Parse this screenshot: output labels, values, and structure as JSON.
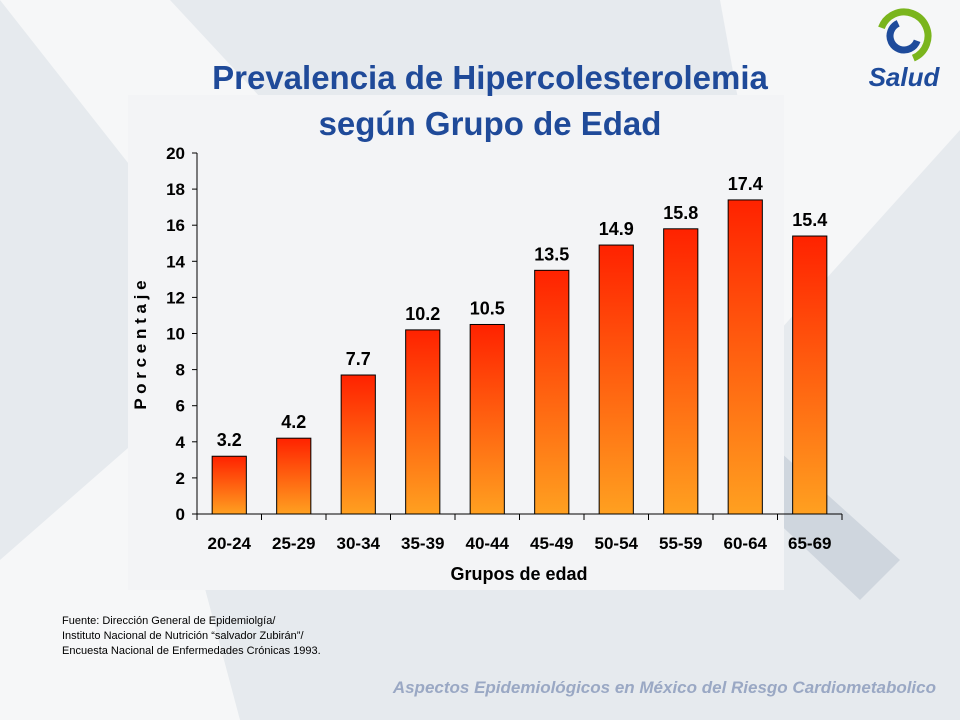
{
  "header": {
    "title_line1": "Prevalencia de Hipercolesterolemia",
    "title_line2": "según Grupo de Edad"
  },
  "logo": {
    "text": "Salud"
  },
  "source": {
    "line1": "Fuente: Dirección General de Epidemiolgía/",
    "line2": "Instituto Nacional de Nutrición  “salvador Zubirán”/",
    "line3": "Encuesta Nacional de Enfermedades Crónicas 1993."
  },
  "footer": {
    "text": "Aspectos Epidemiológicos en México del Riesgo Cardiometabolico"
  },
  "colors": {
    "title": "#1f4a99",
    "bar_top": "#ff2200",
    "bar_bottom": "#ffa020",
    "background": "#e6eaee",
    "panel": "#f3f4f6",
    "logo_green": "#7ab51d",
    "logo_blue": "#1e4b9b"
  },
  "chart_data": {
    "type": "bar",
    "categories": [
      "20-24",
      "25-29",
      "30-34",
      "35-39",
      "40-44",
      "45-49",
      "50-54",
      "55-59",
      "60-64",
      "65-69"
    ],
    "values": [
      3.2,
      4.2,
      7.7,
      10.2,
      10.5,
      13.5,
      14.9,
      15.8,
      17.4,
      15.4
    ],
    "value_labels": [
      "3.2",
      "4.2",
      "7.7",
      "10.2",
      "10.5",
      "13.5",
      "14.9",
      "15.8",
      "17.4",
      "15.4"
    ],
    "xlabel": "Grupos de edad",
    "ylabel": "P o r c e n t a j e",
    "ylim": [
      0,
      20
    ],
    "yticks": [
      "0",
      "2",
      "4",
      "6",
      "8",
      "10",
      "12",
      "14",
      "16",
      "18",
      "20"
    ],
    "grid": false,
    "legend": "none"
  }
}
